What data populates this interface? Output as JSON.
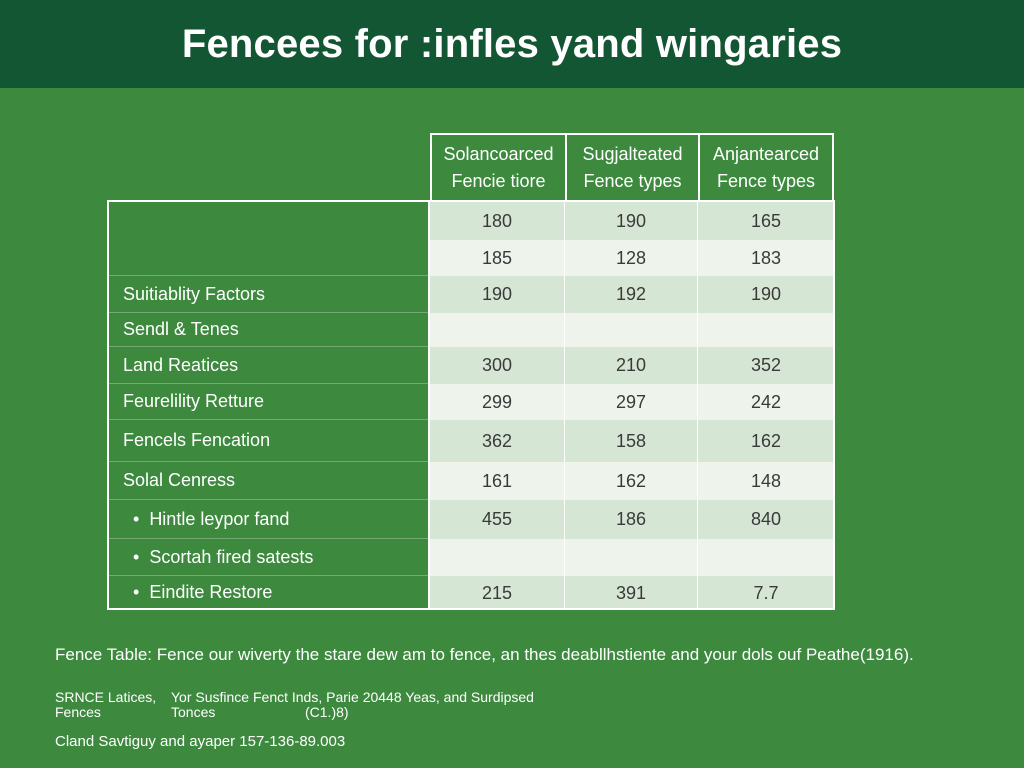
{
  "title": "Fencees for :infles yand wingaries",
  "chart_data": {
    "type": "table",
    "columns": [
      {
        "line1": "Solancoarced",
        "line2": "Fencie tiore"
      },
      {
        "line1": "Sugjalteated",
        "line2": "Fence types"
      },
      {
        "line1": "Anjantearced",
        "line2": "Fence types"
      }
    ],
    "rows": [
      {
        "label": "",
        "bullet": false,
        "values": [
          "180",
          "190",
          "165"
        ]
      },
      {
        "label": "",
        "bullet": false,
        "values": [
          "185",
          "128",
          "183"
        ]
      },
      {
        "label": "Suitiablity Factors",
        "bullet": false,
        "values": [
          "190",
          "192",
          "190"
        ]
      },
      {
        "label": "Sendl & Tenes",
        "bullet": false,
        "values": [
          "",
          "",
          ""
        ]
      },
      {
        "label": "Land Reatices",
        "bullet": false,
        "values": [
          "300",
          "210",
          "352"
        ]
      },
      {
        "label": "Feurelility Retture",
        "bullet": false,
        "values": [
          "299",
          "297",
          "242"
        ]
      },
      {
        "label": "Fencels Fencation",
        "bullet": false,
        "values": [
          "362",
          "158",
          "162"
        ]
      },
      {
        "label": "Solal Cenress",
        "bullet": false,
        "values": [
          "161",
          "162",
          "148"
        ]
      },
      {
        "label": "Hintle leypor fand",
        "bullet": true,
        "values": [
          "455",
          "186",
          "840"
        ]
      },
      {
        "label": "Scortah fired satests",
        "bullet": true,
        "values": [
          "",
          "",
          ""
        ]
      },
      {
        "label": "Eindite Restore",
        "bullet": true,
        "values": [
          "215",
          "391",
          "7.7"
        ]
      }
    ]
  },
  "caption": "Fence Table: Fence our wiverty the stare dew am to fence, an thes deabllhstiente and your dols ouf Peathe(1916).",
  "source": {
    "col1_line1": "SRNCE Latices,",
    "col1_line2": "Fences",
    "col2_line1": "Yor Susfince Fenct Inds, Parie 20448 Yeas, and Surdipsed",
    "col2_line2": "Tonces",
    "col3_line2": "(C1.)8)"
  },
  "footer": "Cland Savtiguy and ayaper 157-136-89.003",
  "colors": {
    "background": "#3d8a3f",
    "title_bar": "#135633",
    "row_light": "#eef3ec",
    "row_mid": "#d6e6d4"
  }
}
